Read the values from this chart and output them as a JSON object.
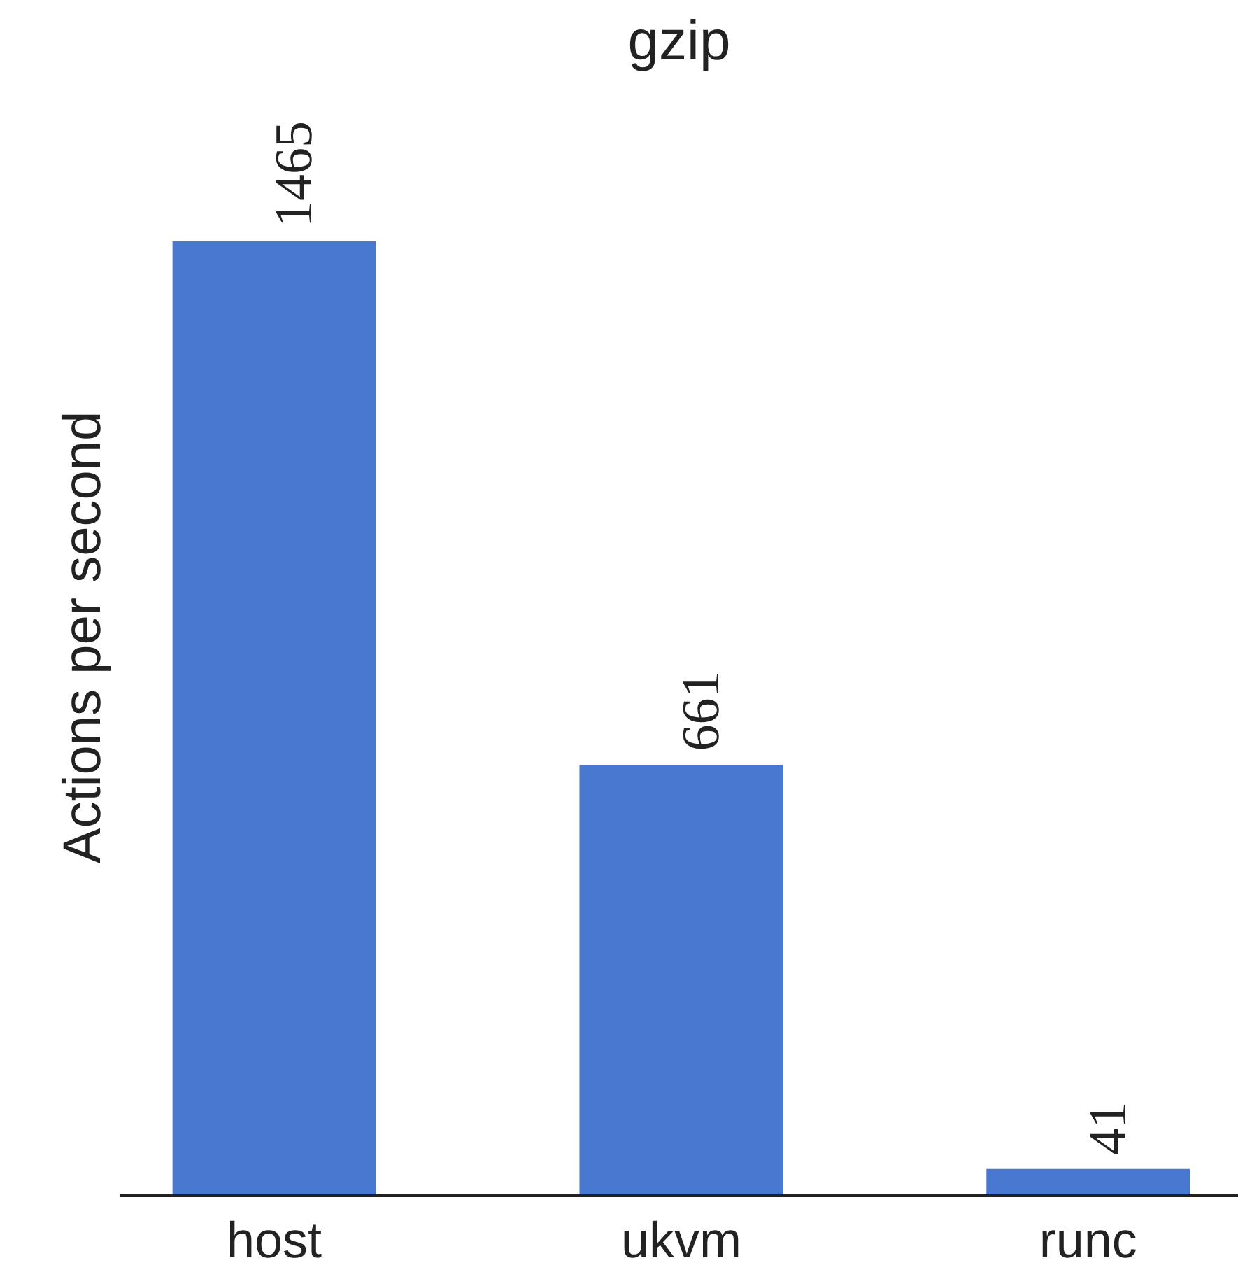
{
  "chart_data": {
    "type": "bar",
    "title": "gzip",
    "ylabel": "Actions per second",
    "categories": [
      "host",
      "ukvm",
      "runc"
    ],
    "values": [
      1465,
      661,
      41
    ],
    "color": "#4878cf",
    "data_labels": true,
    "grid": false
  }
}
